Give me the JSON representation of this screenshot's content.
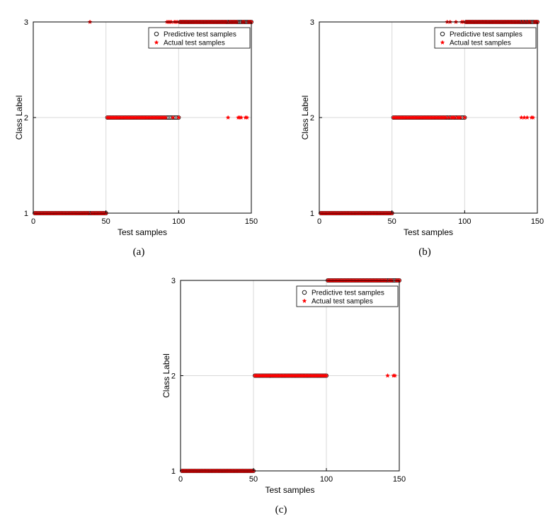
{
  "chart_data": [
    {
      "type": "scatter",
      "panel_label": "(a)",
      "xlabel": "Test samples",
      "ylabel": "Class Label",
      "xlim": [
        0,
        150
      ],
      "ylim": [
        1,
        3
      ],
      "xticks": [
        0,
        50,
        100,
        150
      ],
      "yticks": [
        1,
        2,
        3
      ],
      "grid": true,
      "legend_position": "top-right",
      "legend": [
        "Predictive test samples",
        "Actual test samples"
      ],
      "colors": {
        "predictive": "#000000",
        "actual": "#ff0000"
      },
      "predicted_ranges": [
        {
          "from": 1,
          "to": 50,
          "class": 1
        },
        {
          "from": 51,
          "to": 100,
          "class": 2
        },
        {
          "from": 101,
          "to": 150,
          "class": 3
        }
      ],
      "actual_exceptions": [
        {
          "x": 39,
          "y": 3
        },
        {
          "x": 92,
          "y": 3
        },
        {
          "x": 93,
          "y": 3
        },
        {
          "x": 94,
          "y": 3
        },
        {
          "x": 95,
          "y": 3
        },
        {
          "x": 97,
          "y": 3
        },
        {
          "x": 98,
          "y": 3
        },
        {
          "x": 99,
          "y": 3
        },
        {
          "x": 134,
          "y": 2
        },
        {
          "x": 141,
          "y": 2
        },
        {
          "x": 142,
          "y": 2
        },
        {
          "x": 143,
          "y": 2
        },
        {
          "x": 146,
          "y": 2
        },
        {
          "x": 147,
          "y": 2
        }
      ]
    },
    {
      "type": "scatter",
      "panel_label": "(b)",
      "xlabel": "Test samples",
      "ylabel": "Class Label",
      "xlim": [
        0,
        150
      ],
      "ylim": [
        1,
        3
      ],
      "xticks": [
        0,
        50,
        100,
        150
      ],
      "yticks": [
        1,
        2,
        3
      ],
      "grid": true,
      "legend_position": "top-right",
      "legend": [
        "Predictive test samples",
        "Actual test samples"
      ],
      "colors": {
        "predictive": "#000000",
        "actual": "#ff0000"
      },
      "predicted_ranges": [
        {
          "from": 1,
          "to": 50,
          "class": 1
        },
        {
          "from": 51,
          "to": 100,
          "class": 2
        },
        {
          "from": 101,
          "to": 150,
          "class": 3
        }
      ],
      "actual_exceptions": [
        {
          "x": 88,
          "y": 3
        },
        {
          "x": 90,
          "y": 3
        },
        {
          "x": 94,
          "y": 3
        },
        {
          "x": 98,
          "y": 3
        },
        {
          "x": 99,
          "y": 3
        },
        {
          "x": 139,
          "y": 2
        },
        {
          "x": 141,
          "y": 2
        },
        {
          "x": 143,
          "y": 2
        },
        {
          "x": 146,
          "y": 2
        },
        {
          "x": 147,
          "y": 2
        }
      ]
    },
    {
      "type": "scatter",
      "panel_label": "(c)",
      "xlabel": "Test samples",
      "ylabel": "Class Label",
      "xlim": [
        0,
        150
      ],
      "ylim": [
        1,
        3
      ],
      "xticks": [
        0,
        50,
        100,
        150
      ],
      "yticks": [
        1,
        2,
        3
      ],
      "grid": true,
      "legend_position": "top-right",
      "legend": [
        "Predictive test samples",
        "Actual test samples"
      ],
      "colors": {
        "predictive": "#000000",
        "actual": "#ff0000"
      },
      "predicted_ranges": [
        {
          "from": 1,
          "to": 50,
          "class": 1
        },
        {
          "from": 51,
          "to": 100,
          "class": 2
        },
        {
          "from": 101,
          "to": 150,
          "class": 3
        }
      ],
      "actual_exceptions": [
        {
          "x": 142,
          "y": 2
        },
        {
          "x": 146,
          "y": 2
        },
        {
          "x": 147,
          "y": 2
        }
      ]
    }
  ]
}
